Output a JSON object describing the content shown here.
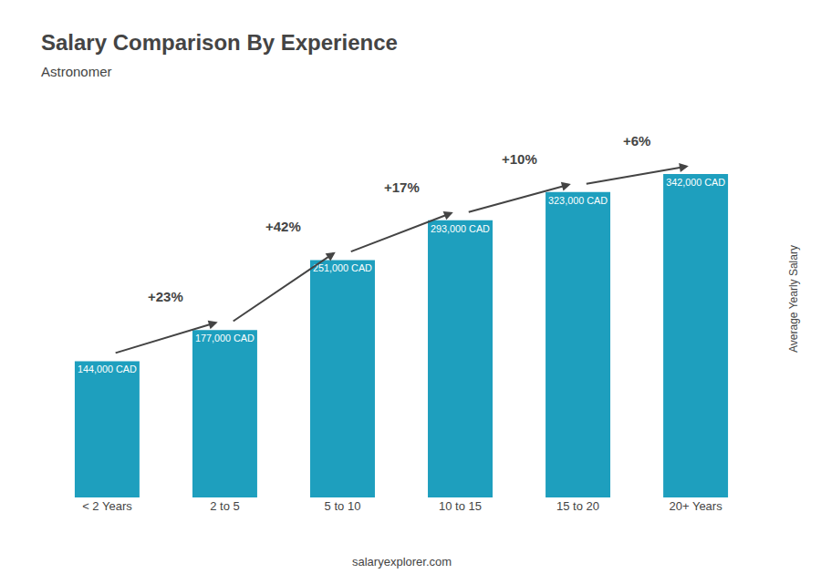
{
  "chart_data": {
    "type": "bar",
    "title": "Salary Comparison By Experience",
    "subtitle": "Astronomer",
    "ylabel": "Average Yearly Salary",
    "footer": "salaryexplorer.com",
    "categories": [
      "< 2 Years",
      "2 to 5",
      "5 to 10",
      "10 to 15",
      "15 to 20",
      "20+ Years"
    ],
    "values": [
      144000,
      177000,
      251000,
      293000,
      323000,
      342000
    ],
    "value_labels": [
      "144,000 CAD",
      "177,000 CAD",
      "251,000 CAD",
      "293,000 CAD",
      "323,000 CAD",
      "342,000 CAD"
    ],
    "data_labels": true,
    "annotations": [
      "+23%",
      "+42%",
      "+17%",
      "+10%",
      "+6%"
    ],
    "color": "#1e9fbe",
    "ylim": [
      0,
      420000
    ],
    "tick_labels": "x",
    "grid": false
  }
}
